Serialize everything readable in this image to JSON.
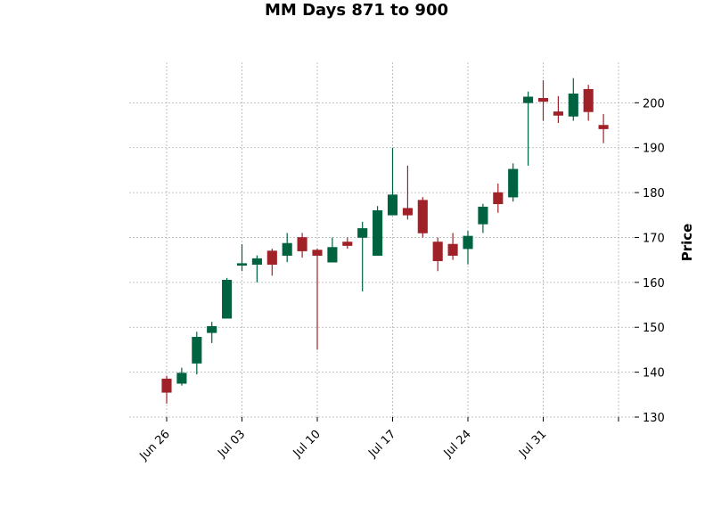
{
  "chart_data": {
    "type": "candlestick",
    "title": "MM Days 871 to 900",
    "ylabel": "Price",
    "xlabel": "",
    "ylim": [
      130,
      209
    ],
    "y_ticks": [
      130,
      140,
      150,
      160,
      170,
      180,
      190,
      200
    ],
    "x_ticks": [
      {
        "label": "Jun 26",
        "index": 0
      },
      {
        "label": "Jul 03",
        "index": 5
      },
      {
        "label": "Jul 10",
        "index": 10
      },
      {
        "label": "Jul 17",
        "index": 15
      },
      {
        "label": "Jul 24",
        "index": 20
      },
      {
        "label": "Jul 31",
        "index": 25
      },
      {
        "label": "",
        "index": 30
      }
    ],
    "grid": true,
    "up_color": "#006340",
    "down_color": "#a02128",
    "candles": [
      {
        "open": 138.5,
        "high": 139.2,
        "low": 133.0,
        "close": 135.5
      },
      {
        "open": 137.5,
        "high": 141.0,
        "low": 137.0,
        "close": 139.8
      },
      {
        "open": 142.0,
        "high": 149.0,
        "low": 139.5,
        "close": 147.8
      },
      {
        "open": 148.8,
        "high": 151.2,
        "low": 146.5,
        "close": 150.2
      },
      {
        "open": 152.0,
        "high": 161.0,
        "low": 152.0,
        "close": 160.5
      },
      {
        "open": 163.8,
        "high": 168.5,
        "low": 162.5,
        "close": 164.2
      },
      {
        "open": 164.0,
        "high": 166.0,
        "low": 160.0,
        "close": 165.3
      },
      {
        "open": 167.0,
        "high": 167.5,
        "low": 161.5,
        "close": 164.0
      },
      {
        "open": 166.0,
        "high": 171.0,
        "low": 164.5,
        "close": 168.7
      },
      {
        "open": 170.0,
        "high": 171.0,
        "low": 165.5,
        "close": 167.0
      },
      {
        "open": 167.2,
        "high": 167.5,
        "low": 145.0,
        "close": 166.0
      },
      {
        "open": 164.5,
        "high": 170.0,
        "low": 164.5,
        "close": 167.8
      },
      {
        "open": 169.0,
        "high": 170.0,
        "low": 167.5,
        "close": 168.2
      },
      {
        "open": 170.0,
        "high": 173.5,
        "low": 158.0,
        "close": 172.0
      },
      {
        "open": 166.0,
        "high": 177.0,
        "low": 166.0,
        "close": 176.0
      },
      {
        "open": 175.0,
        "high": 190.0,
        "low": 175.0,
        "close": 179.5
      },
      {
        "open": 176.5,
        "high": 186.0,
        "low": 174.0,
        "close": 175.0
      },
      {
        "open": 178.3,
        "high": 179.0,
        "low": 170.0,
        "close": 171.0
      },
      {
        "open": 169.0,
        "high": 170.0,
        "low": 162.5,
        "close": 164.8
      },
      {
        "open": 168.5,
        "high": 171.0,
        "low": 165.0,
        "close": 166.0
      },
      {
        "open": 167.5,
        "high": 171.5,
        "low": 164.0,
        "close": 170.3
      },
      {
        "open": 173.0,
        "high": 177.5,
        "low": 171.0,
        "close": 176.8
      },
      {
        "open": 180.0,
        "high": 182.0,
        "low": 175.5,
        "close": 177.5
      },
      {
        "open": 179.0,
        "high": 186.5,
        "low": 178.0,
        "close": 185.2
      },
      {
        "open": 200.0,
        "high": 202.5,
        "low": 186.0,
        "close": 201.3
      },
      {
        "open": 201.0,
        "high": 205.0,
        "low": 196.0,
        "close": 200.3
      },
      {
        "open": 198.0,
        "high": 201.5,
        "low": 195.5,
        "close": 197.2
      },
      {
        "open": 197.0,
        "high": 205.5,
        "low": 196.0,
        "close": 202.0
      },
      {
        "open": 203.0,
        "high": 204.0,
        "low": 196.0,
        "close": 198.0
      },
      {
        "open": 195.0,
        "high": 197.5,
        "low": 191.0,
        "close": 194.2
      }
    ]
  }
}
